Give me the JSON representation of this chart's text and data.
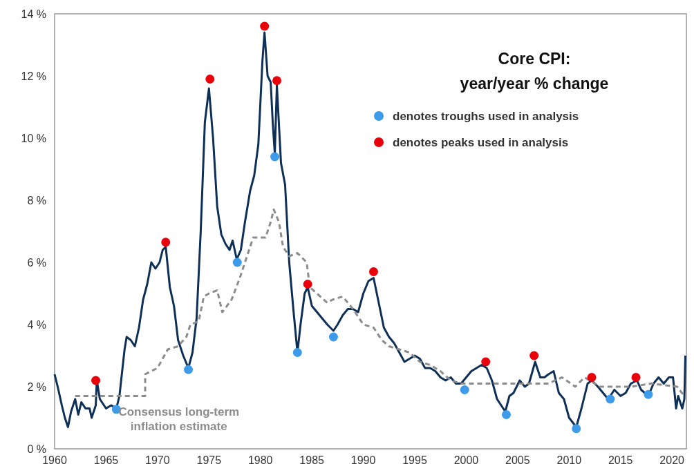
{
  "chart_data": {
    "type": "line",
    "title": "Core CPI:\nyear/year % change",
    "xlim": [
      1960,
      2021.4
    ],
    "xticks": [
      1960,
      1965,
      1970,
      1975,
      1980,
      1985,
      1990,
      1995,
      2000,
      2005,
      2010,
      2015,
      2020
    ],
    "ylim": [
      0,
      14
    ],
    "yticks": [
      {
        "value": 0,
        "label": "0 %"
      },
      {
        "value": 2,
        "label": "2 %"
      },
      {
        "value": 4,
        "label": "4 %"
      },
      {
        "value": 6,
        "label": "6 %"
      },
      {
        "value": 8,
        "label": "8 %"
      },
      {
        "value": 10,
        "label": "10 %"
      },
      {
        "value": 12,
        "label": "12 %"
      },
      {
        "value": 14,
        "label": "14 %"
      }
    ],
    "grid": false,
    "legend": "top right",
    "series": [
      {
        "color": "#0e2f56",
        "line_style": "solid",
        "marker": "none",
        "x": [
          1960,
          1960.3,
          1960.7,
          1961,
          1961.3,
          1961.6,
          1962,
          1962.3,
          1962.6,
          1963,
          1963.4,
          1963.6,
          1964,
          1964.1,
          1964.4,
          1965,
          1965.5,
          1966,
          1966.3,
          1966.8,
          1967,
          1967.4,
          1967.8,
          1968.2,
          1968.6,
          1969,
          1969.4,
          1969.8,
          1970.2,
          1970.5,
          1970.8,
          1971.2,
          1971.6,
          1972,
          1972.5,
          1973,
          1973.4,
          1973.8,
          1974.2,
          1974.6,
          1975,
          1975.4,
          1975.8,
          1976.2,
          1976.6,
          1977,
          1977.3,
          1977.7,
          1978.1,
          1978.5,
          1979,
          1979.4,
          1979.8,
          1980.2,
          1980.4,
          1980.7,
          1981,
          1981.2,
          1981.4,
          1981.6,
          1982,
          1982.4,
          1982.8,
          1983.2,
          1983.6,
          1983.9,
          1984.3,
          1984.6,
          1985,
          1985.5,
          1986,
          1986.5,
          1987.1,
          1987.5,
          1988,
          1988.5,
          1989,
          1989.5,
          1990,
          1990.5,
          1991,
          1991.5,
          1992,
          1992.5,
          1993,
          1993.5,
          1994,
          1994.5,
          1995,
          1995.5,
          1996,
          1996.5,
          1997,
          1997.5,
          1998,
          1998.5,
          1999,
          1999.5,
          2000,
          2000.5,
          2001,
          2001.5,
          2002,
          2002.5,
          2003,
          2003.8,
          2004.2,
          2004.6,
          2005.2,
          2005.7,
          2006.1,
          2006.7,
          2007.2,
          2007.6,
          2008,
          2008.5,
          2009,
          2009.5,
          2010,
          2010.7,
          2011.2,
          2011.8,
          2012.2,
          2012.8,
          2013.3,
          2013.8,
          2014.4,
          2015,
          2015.5,
          2016,
          2016.6,
          2017,
          2017.7,
          2018.2,
          2018.7,
          2019.2,
          2019.7,
          2020.1,
          2020.4,
          2020.6,
          2021,
          2021.2,
          2021.3
        ],
        "values": [
          2.4,
          2.0,
          1.4,
          1.0,
          0.7,
          1.2,
          1.6,
          1.1,
          1.5,
          1.3,
          1.3,
          1.0,
          1.4,
          2.2,
          1.6,
          1.3,
          1.4,
          1.3,
          1.7,
          3.2,
          3.6,
          3.5,
          3.3,
          3.9,
          4.8,
          5.3,
          6.0,
          5.8,
          6.0,
          6.4,
          6.5,
          5.2,
          4.6,
          3.5,
          3.0,
          2.6,
          3.1,
          4.2,
          7.0,
          10.5,
          11.6,
          10.0,
          7.8,
          6.9,
          6.6,
          6.4,
          6.7,
          6.1,
          6.4,
          7.3,
          8.3,
          8.8,
          9.8,
          12.5,
          13.4,
          12.0,
          11.8,
          10.5,
          9.5,
          11.7,
          9.2,
          8.5,
          6.0,
          4.5,
          3.1,
          4.0,
          5.0,
          5.2,
          4.6,
          4.4,
          4.2,
          4.0,
          3.8,
          4.0,
          4.3,
          4.5,
          4.5,
          4.4,
          5.0,
          5.4,
          5.5,
          4.7,
          3.9,
          3.6,
          3.4,
          3.1,
          2.8,
          2.9,
          3.0,
          2.9,
          2.6,
          2.6,
          2.5,
          2.3,
          2.2,
          2.3,
          2.1,
          2.1,
          2.3,
          2.5,
          2.6,
          2.7,
          2.6,
          2.2,
          1.6,
          1.2,
          1.7,
          1.8,
          2.2,
          2.0,
          2.1,
          2.8,
          2.3,
          2.3,
          2.4,
          2.5,
          1.8,
          1.6,
          1.0,
          0.7,
          1.3,
          2.1,
          2.2,
          2.0,
          1.8,
          1.6,
          1.9,
          1.7,
          1.8,
          2.1,
          2.2,
          1.9,
          1.7,
          2.1,
          2.3,
          2.1,
          2.3,
          2.3,
          1.3,
          1.7,
          1.3,
          1.6,
          3.0
        ]
      },
      {
        "name": "Consensus long-term\ninflation estimate",
        "color": "#8c8c8c",
        "line_style": "dashed",
        "marker": "none",
        "x": [
          1962,
          1968.8,
          1968.8,
          1970,
          1970.5,
          1971,
          1972,
          1972.8,
          1973.2,
          1974,
          1974.5,
          1975,
          1975.8,
          1976.3,
          1977.2,
          1978,
          1978.5,
          1979.3,
          1980.5,
          1981,
          1981.3,
          1981.8,
          1982.2,
          1982.8,
          1983.6,
          1984.5,
          1984.8,
          1985.5,
          1986.5,
          1987,
          1988,
          1989,
          1989.6,
          1990,
          1991,
          1991.8,
          1992.5,
          1993.5,
          1994.5,
          1995.5,
          1996.5,
          1997.5,
          1998.5,
          1999.5,
          2001,
          2003,
          2006,
          2008,
          2009.3,
          2010.6,
          2011.5,
          2013,
          2016,
          2018,
          2020.5,
          2021.2
        ],
        "values": [
          1.7,
          1.7,
          2.4,
          2.6,
          2.9,
          3.2,
          3.3,
          3.6,
          4.0,
          4.1,
          4.9,
          5.0,
          5.1,
          4.4,
          4.8,
          5.5,
          6.0,
          6.8,
          6.8,
          7.3,
          7.7,
          7.3,
          6.5,
          6.2,
          6.3,
          6.0,
          5.2,
          5.0,
          4.7,
          4.8,
          4.9,
          4.5,
          4.2,
          4.0,
          3.9,
          3.5,
          3.3,
          3.2,
          3.1,
          2.8,
          2.7,
          2.5,
          2.2,
          2.1,
          2.1,
          2.1,
          2.1,
          2.1,
          2.3,
          2.0,
          2.3,
          2.0,
          2.0,
          2.1,
          2.0,
          1.7
        ]
      },
      {
        "type": "scatter",
        "name": "denotes troughs used in analysis",
        "color": "#3d9be9",
        "marker": "circle",
        "x": [
          1966,
          1973,
          1977.75,
          1981.4,
          1983.6,
          1987.1,
          1999.85,
          2003.9,
          2010.7,
          2014,
          2017.7
        ],
        "values": [
          1.27,
          2.55,
          6.0,
          9.4,
          3.1,
          3.6,
          1.9,
          1.1,
          0.65,
          1.6,
          1.75
        ]
      },
      {
        "type": "scatter",
        "name": "denotes peaks used in analysis",
        "color": "#e8000b",
        "marker": "circle",
        "x": [
          1964,
          1970.8,
          1975.1,
          1980.4,
          1981.6,
          1984.6,
          1991,
          2001.9,
          2006.6,
          2012.2,
          2016.5
        ],
        "values": [
          2.2,
          6.65,
          11.9,
          13.6,
          11.85,
          5.3,
          5.7,
          2.8,
          3.0,
          2.3,
          2.3
        ]
      }
    ]
  }
}
